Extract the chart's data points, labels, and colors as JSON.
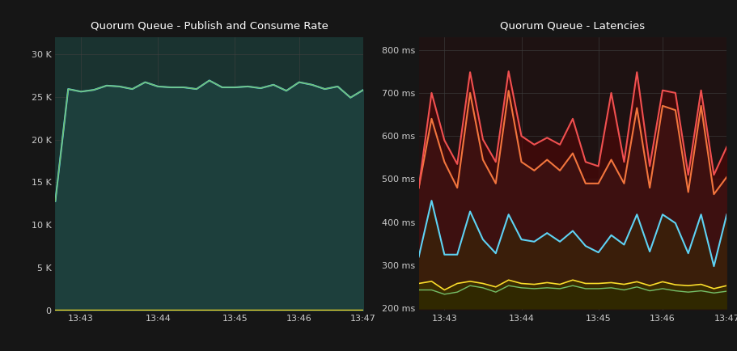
{
  "bg_color": "#161616",
  "text_color": "#cccccc",
  "title1": "Quorum Queue - Publish and Consume Rate",
  "title2": "Quorum Queue - Latencies",
  "xtick_labels": [
    "13:43",
    "13:44",
    "13:45",
    "13:46",
    "13:47"
  ],
  "left_ylim": [
    0,
    32000
  ],
  "left_yticks": [
    0,
    5000,
    10000,
    15000,
    20000,
    25000,
    30000
  ],
  "left_ytick_labels": [
    "0",
    "5 K",
    "10 K",
    "15 K",
    "20 K",
    "25 K",
    "30 K"
  ],
  "right_ylim": [
    195,
    830
  ],
  "right_yticks": [
    200,
    300,
    400,
    500,
    600,
    700,
    800
  ],
  "right_ytick_labels": [
    "200 ms",
    "300 ms",
    "400 ms",
    "500 ms",
    "600 ms",
    "700 ms",
    "800 ms"
  ],
  "published_color": "#73bf69",
  "confirmed_color": "#fade2a",
  "consumed_color": "#5ed3f3",
  "lat50_color": "#73bf69",
  "lat75_color": "#fade2a",
  "lat95_color": "#5ed3f3",
  "lat99_color": "#f2763e",
  "lat999_color": "#f05050",
  "chart1_bg": "#1a3330",
  "chart2_bg": "#1e1212",
  "fill_bottom_color": "#2a2400",
  "fill_mid_color": "#3a1a00",
  "fill_upper_color": "#3d1010",
  "x_left": [
    0,
    1,
    2,
    3,
    4,
    5,
    6,
    7,
    8,
    9,
    10,
    11,
    12,
    13,
    14,
    15,
    16,
    17,
    18,
    19,
    20,
    21,
    22,
    23,
    24
  ],
  "published": [
    12800,
    25900,
    25600,
    25800,
    26300,
    26200,
    25900,
    26700,
    26200,
    26100,
    26100,
    25900,
    26900,
    26100,
    26100,
    26200,
    26000,
    26400,
    25700,
    26700,
    26400,
    25900,
    26200,
    24900,
    25800
  ],
  "confirmed": [
    100,
    100,
    100,
    100,
    100,
    100,
    100,
    100,
    100,
    100,
    100,
    100,
    100,
    100,
    100,
    100,
    100,
    100,
    100,
    100,
    100,
    100,
    100,
    100,
    100
  ],
  "consumed": [
    12800,
    25900,
    25600,
    25800,
    26300,
    26200,
    25900,
    26700,
    26200,
    26100,
    26100,
    25900,
    26900,
    26100,
    26100,
    26200,
    26000,
    26400,
    25700,
    26700,
    26400,
    25900,
    26200,
    24900,
    25800
  ],
  "x_right": [
    0,
    1,
    2,
    3,
    4,
    5,
    6,
    7,
    8,
    9,
    10,
    11,
    12,
    13,
    14,
    15,
    16,
    17,
    18,
    19,
    20,
    21,
    22,
    23,
    24
  ],
  "lat50": [
    243,
    243,
    233,
    238,
    253,
    248,
    238,
    253,
    248,
    246,
    248,
    246,
    253,
    246,
    246,
    248,
    243,
    250,
    241,
    246,
    241,
    238,
    241,
    236,
    240
  ],
  "lat75": [
    258,
    263,
    243,
    258,
    263,
    258,
    250,
    266,
    258,
    256,
    260,
    256,
    266,
    258,
    258,
    260,
    256,
    262,
    253,
    262,
    255,
    253,
    256,
    246,
    253
  ],
  "lat95": [
    320,
    450,
    325,
    325,
    425,
    360,
    328,
    418,
    360,
    355,
    375,
    355,
    380,
    345,
    330,
    370,
    348,
    418,
    332,
    418,
    398,
    328,
    418,
    298,
    418
  ],
  "lat99": [
    480,
    640,
    540,
    480,
    700,
    545,
    490,
    705,
    540,
    520,
    545,
    520,
    560,
    490,
    490,
    545,
    490,
    665,
    480,
    670,
    660,
    470,
    670,
    465,
    505
  ],
  "lat999": [
    480,
    700,
    590,
    535,
    748,
    592,
    540,
    750,
    600,
    580,
    596,
    580,
    640,
    540,
    530,
    700,
    540,
    748,
    530,
    706,
    700,
    510,
    706,
    510,
    575
  ]
}
